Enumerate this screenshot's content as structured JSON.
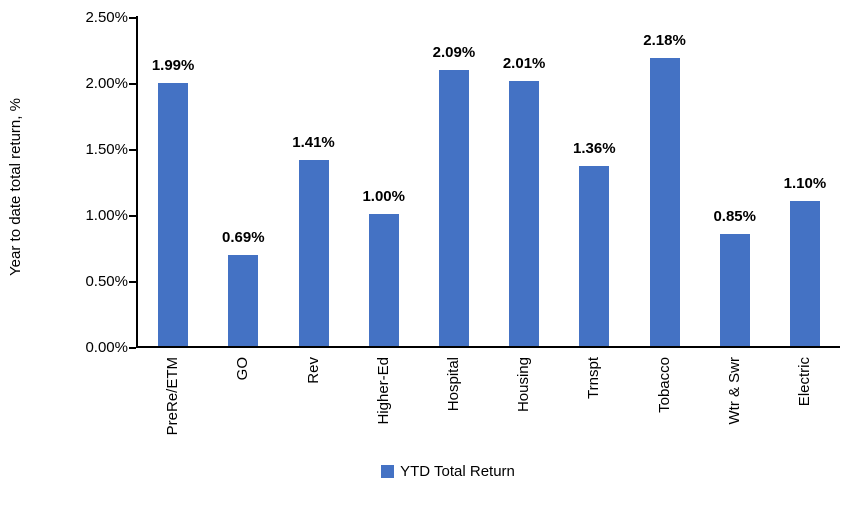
{
  "chart_data": {
    "type": "bar",
    "title": "",
    "categories": [
      "PreRe/ETM",
      "GO",
      "Rev",
      "Higher-Ed",
      "Hospital",
      "Housing",
      "Trnspt",
      "Tobacco",
      "Wtr & Swr",
      "Electric"
    ],
    "values": [
      1.99,
      0.69,
      1.41,
      1.0,
      2.09,
      2.01,
      1.36,
      2.18,
      0.85,
      1.1
    ],
    "value_labels": [
      "1.99%",
      "0.69%",
      "1.41%",
      "1.00%",
      "2.09%",
      "2.01%",
      "1.36%",
      "2.18%",
      "0.85%",
      "1.10%"
    ],
    "xlabel": "",
    "ylabel": "Year to date total return, %",
    "ylim": [
      0,
      2.5
    ],
    "ytick_labels": [
      "2.50%",
      "2.00%",
      "1.50%",
      "1.00%",
      "0.50%",
      "0.00%"
    ],
    "ytick_values": [
      2.5,
      2.0,
      1.5,
      1.0,
      0.5,
      0.0
    ],
    "grid": false,
    "legend_position": "bottom",
    "series": [
      {
        "name": "YTD Total Return",
        "color": "#4472C4"
      }
    ]
  },
  "legend": {
    "label": "YTD Total Return"
  },
  "colors": {
    "bar": "#4472C4",
    "axis": "#000000",
    "text": "#000000"
  }
}
